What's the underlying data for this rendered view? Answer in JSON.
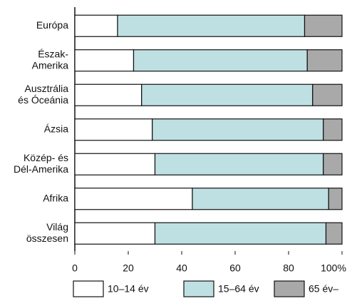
{
  "chart_data": {
    "type": "stacked-bar-horizontal",
    "categories": [
      [
        "Európa"
      ],
      [
        "Észak-",
        "Amerika"
      ],
      [
        "Ausztrália",
        "és Óceánia"
      ],
      [
        "Ázsia"
      ],
      [
        "Közép- és",
        "Dél-Amerika"
      ],
      [
        "Afrika"
      ],
      [
        "Világ",
        "összesen"
      ]
    ],
    "series": [
      {
        "name": "10–14 év",
        "color": "#ffffff",
        "values": [
          16,
          22,
          25,
          29,
          30,
          44,
          30
        ]
      },
      {
        "name": "15–64 év",
        "color": "#bfe0e3",
        "values": [
          70,
          65,
          64,
          64,
          63,
          51,
          64
        ]
      },
      {
        "name": "65 év–",
        "color": "#a9a9a9",
        "values": [
          14,
          13,
          11,
          7,
          7,
          5,
          6
        ]
      }
    ],
    "xlim": [
      0,
      100
    ],
    "xticks": [
      0,
      20,
      40,
      60,
      80,
      {
        "value": 100,
        "label": "100%"
      }
    ]
  }
}
